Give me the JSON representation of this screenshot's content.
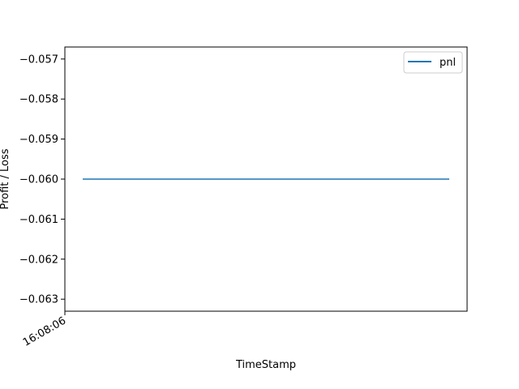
{
  "chart_data": {
    "type": "line",
    "title": "",
    "xlabel": "TimeStamp",
    "ylabel": "Profit / Loss",
    "x_ticks": [
      "16:08:06"
    ],
    "y_ticks": [
      -0.057,
      -0.058,
      -0.059,
      -0.06,
      -0.061,
      -0.062,
      -0.063
    ],
    "y_tick_labels": [
      "−0.057",
      "−0.058",
      "−0.059",
      "−0.060",
      "−0.061",
      "−0.062",
      "−0.063"
    ],
    "ylim": [
      -0.0633,
      -0.0567
    ],
    "grid": false,
    "legend_position": "top-right",
    "series": [
      {
        "name": "pnl",
        "color": "#1f77b4",
        "values": [
          -0.06,
          -0.06
        ]
      }
    ]
  }
}
